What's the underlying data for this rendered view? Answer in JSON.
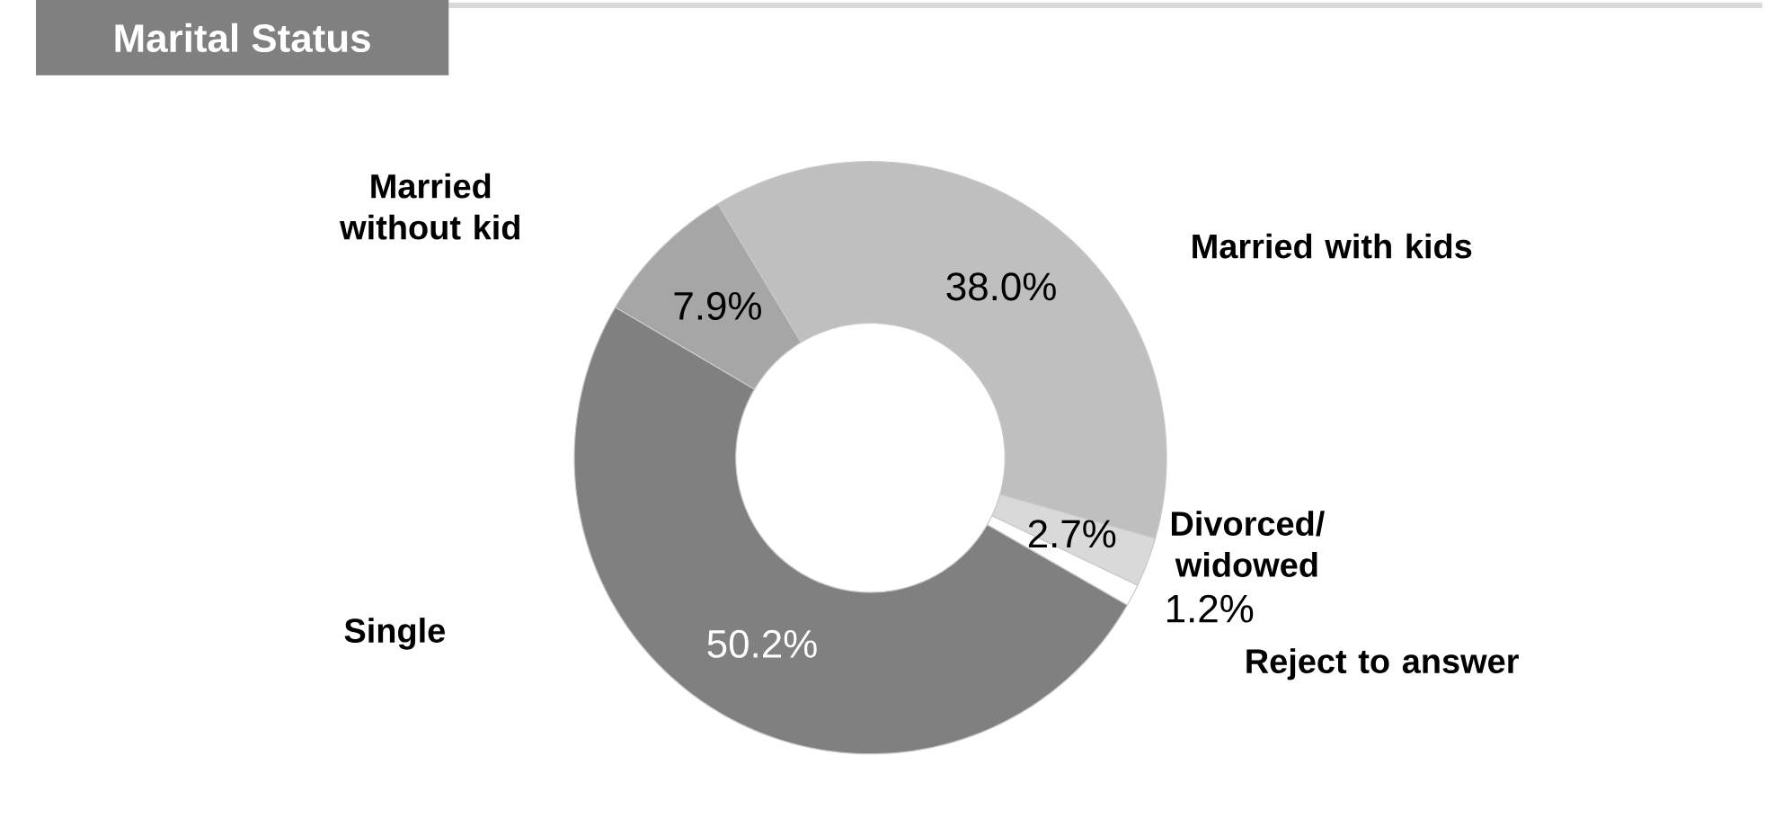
{
  "chart_data": {
    "type": "donut",
    "title": "Marital Status",
    "categories": [
      "Married with kids",
      "Divorced/ widowed",
      "Reject to answer",
      "Single",
      "Married without kid"
    ],
    "values": [
      38.0,
      2.7,
      1.2,
      50.2,
      7.9
    ],
    "colors": [
      "#bfbfbf",
      "#d9d9d9",
      "#ffffff",
      "#808080",
      "#a6a6a6"
    ],
    "value_labels": [
      "38.0%",
      "2.7%",
      "1.2%",
      "50.2%",
      "7.9%"
    ]
  }
}
